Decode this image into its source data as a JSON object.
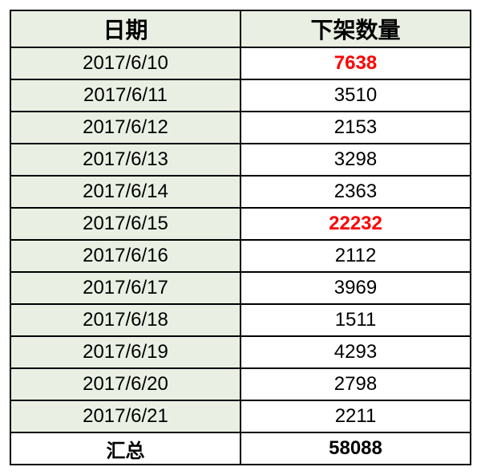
{
  "table": {
    "type": "table",
    "columns": [
      {
        "label": "日期",
        "key": "date",
        "bg": "#e9f0e3",
        "align": "center",
        "width": "50%"
      },
      {
        "label": "下架数量",
        "key": "count",
        "bg": "#ffffff",
        "align": "center",
        "width": "50%"
      }
    ],
    "header_bg": "#e9f0e3",
    "header_fontsize": 28,
    "cell_fontsize": 24,
    "border_color": "#000000",
    "border_width": 2,
    "highlight_color": "#ff0000",
    "text_color": "#000000",
    "rows": [
      {
        "date": "2017/6/10",
        "count": "7638",
        "highlight": true
      },
      {
        "date": "2017/6/11",
        "count": "3510",
        "highlight": false
      },
      {
        "date": "2017/6/12",
        "count": "2153",
        "highlight": false
      },
      {
        "date": "2017/6/13",
        "count": "3298",
        "highlight": false
      },
      {
        "date": "2017/6/14",
        "count": "2363",
        "highlight": false
      },
      {
        "date": "2017/6/15",
        "count": "22232",
        "highlight": true
      },
      {
        "date": "2017/6/16",
        "count": "2112",
        "highlight": false
      },
      {
        "date": "2017/6/17",
        "count": "3969",
        "highlight": false
      },
      {
        "date": "2017/6/18",
        "count": "1511",
        "highlight": false
      },
      {
        "date": "2017/6/19",
        "count": "4293",
        "highlight": false
      },
      {
        "date": "2017/6/20",
        "count": "2798",
        "highlight": false
      },
      {
        "date": "2017/6/21",
        "count": "2211",
        "highlight": false
      }
    ],
    "summary": {
      "label": "汇总",
      "count": "58088"
    }
  }
}
